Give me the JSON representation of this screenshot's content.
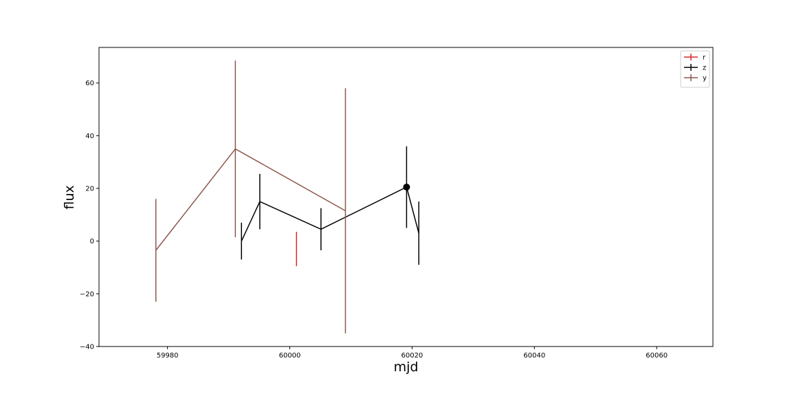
{
  "chart_data": {
    "type": "line",
    "title": "",
    "xlabel": "mjd",
    "ylabel": "flux",
    "xlim": [
      59968.8,
      60069.2
    ],
    "ylim": [
      -40,
      73.5
    ],
    "xticks": [
      59980,
      60000,
      60020,
      60040,
      60060
    ],
    "yticks": [
      -40,
      -20,
      0,
      20,
      40,
      60
    ],
    "xtick_labels": [
      "59980",
      "60000",
      "60020",
      "60040",
      "60060"
    ],
    "ytick_labels": [
      "−40",
      "−20",
      "0",
      "20",
      "40",
      "60"
    ],
    "grid": false,
    "legend_position": "top-right",
    "series": [
      {
        "name": "r",
        "color": "#d62728",
        "points": [
          {
            "x": 60001.1,
            "y": -3.0,
            "err": 6.5
          }
        ]
      },
      {
        "name": "z",
        "color": "#000000",
        "points": [
          {
            "x": 59992.1,
            "y": 0.0,
            "err": 7.0
          },
          {
            "x": 59995.1,
            "y": 15.0,
            "err": 10.5
          },
          {
            "x": 60005.1,
            "y": 4.5,
            "err": 8.0
          },
          {
            "x": 60019.1,
            "y": 20.5,
            "err": 15.5,
            "marker": true
          },
          {
            "x": 60021.1,
            "y": 3.0,
            "err": 12.0
          }
        ]
      },
      {
        "name": "y",
        "color": "#8c564b",
        "points": [
          {
            "x": 59978.1,
            "y": -3.5,
            "err": 19.5
          },
          {
            "x": 59991.1,
            "y": 35.0,
            "err": 33.5
          },
          {
            "x": 60009.1,
            "y": 11.5,
            "err": 46.5
          }
        ]
      }
    ]
  }
}
